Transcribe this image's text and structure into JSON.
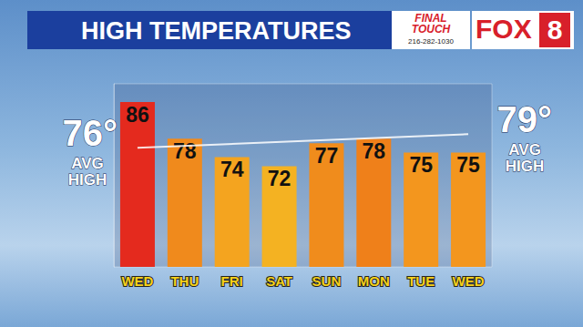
{
  "chart_data": {
    "type": "bar",
    "title": "HIGH TEMPERATURES",
    "categories": [
      "WED",
      "THU",
      "FRI",
      "SAT",
      "SUN",
      "MON",
      "TUE",
      "WED"
    ],
    "values": [
      86,
      78,
      74,
      72,
      77,
      78,
      75,
      75
    ],
    "colors": [
      "#e42a1e",
      "#f08a1c",
      "#f4a41f",
      "#f4b222",
      "#f08c1c",
      "#ef801a",
      "#f3961e",
      "#f3961e"
    ],
    "ylim": [
      50,
      90
    ],
    "yticks": [],
    "grid": false,
    "data_labels": true,
    "tick_labels": "x",
    "avg_high": {
      "values": [
        76,
        79
      ],
      "labels": [
        "76°",
        "79°"
      ],
      "text": "AVG HIGH"
    },
    "logos": [
      "FINAL TOUCH",
      "216-282-1030",
      "FOX",
      "8"
    ]
  }
}
